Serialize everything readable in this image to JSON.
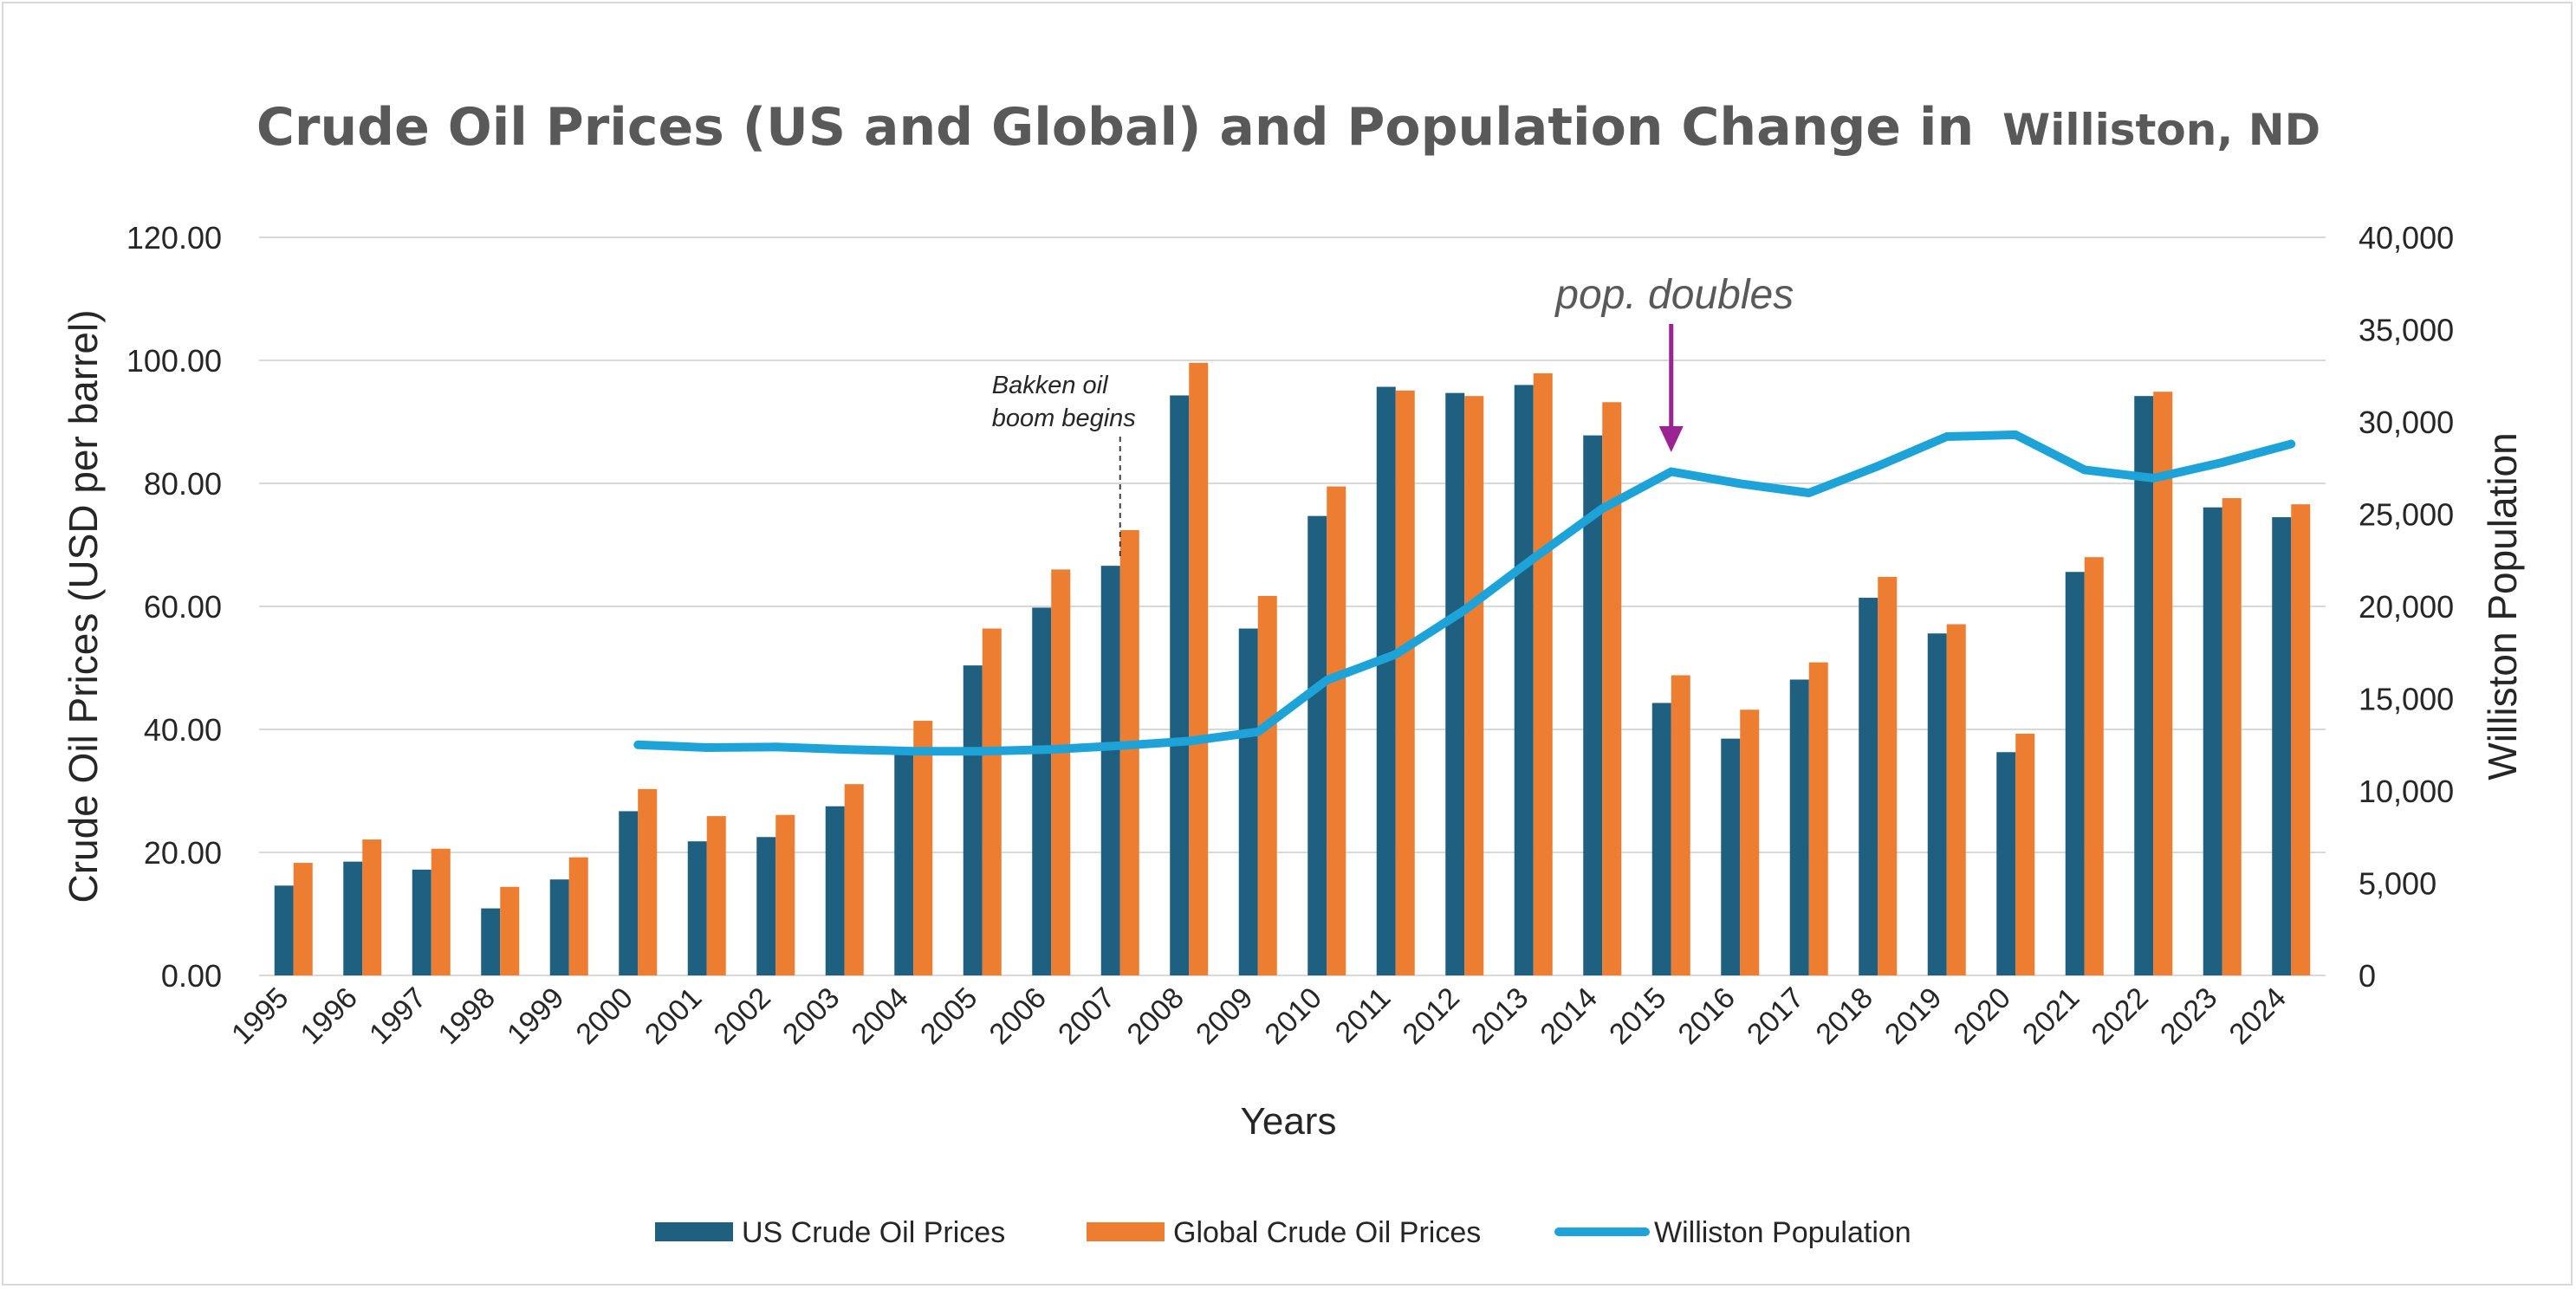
{
  "chart_data": {
    "type": "bar",
    "title_main": "Crude Oil Prices (US and Global) and Population Change in",
    "title_place": "Williston, ND",
    "xlabel": "Years",
    "ylabel": "Crude Oil Prices (USD per barrel)",
    "y2label": "Williston Population",
    "ylim": [
      0,
      120
    ],
    "y2lim": [
      0,
      40000
    ],
    "y_ticks": [
      "0.00",
      "20.00",
      "40.00",
      "60.00",
      "80.00",
      "100.00",
      "120.00"
    ],
    "y2_ticks": [
      "0",
      "5,000",
      "10,000",
      "15,000",
      "20,000",
      "25,000",
      "30,000",
      "35,000",
      "40,000"
    ],
    "grid": true,
    "legend_position": "bottom",
    "categories": [
      "1995",
      "1996",
      "1997",
      "1998",
      "1999",
      "2000",
      "2001",
      "2002",
      "2003",
      "2004",
      "2005",
      "2006",
      "2007",
      "2008",
      "2009",
      "2010",
      "2011",
      "2012",
      "2013",
      "2014",
      "2015",
      "2016",
      "2017",
      "2018",
      "2019",
      "2020",
      "2021",
      "2022",
      "2023",
      "2024"
    ],
    "series": [
      {
        "name": "US Crude Oil Prices",
        "type": "bar",
        "axis": "left",
        "color": "#1f5f80",
        "values": [
          14.6,
          18.5,
          17.2,
          10.9,
          15.6,
          26.7,
          21.8,
          22.5,
          27.5,
          36.9,
          50.4,
          59.8,
          66.6,
          94.3,
          56.4,
          74.7,
          95.7,
          94.7,
          96.0,
          87.8,
          44.3,
          38.5,
          48.1,
          61.4,
          55.6,
          36.3,
          65.6,
          94.2,
          76.1,
          74.5
        ]
      },
      {
        "name": "Global Crude Oil Prices",
        "type": "bar",
        "axis": "left",
        "color": "#ed7d31",
        "values": [
          18.3,
          22.1,
          20.6,
          14.4,
          19.2,
          30.3,
          25.9,
          26.1,
          31.1,
          41.4,
          56.4,
          66.0,
          72.4,
          99.6,
          61.7,
          79.5,
          95.1,
          94.2,
          97.9,
          93.2,
          48.8,
          43.2,
          50.9,
          64.8,
          57.1,
          39.3,
          68.0,
          94.9,
          77.6,
          76.6
        ]
      },
      {
        "name": "Williston Population",
        "type": "line",
        "axis": "right",
        "color": "#1ea3d9",
        "x": [
          "2000",
          "2001",
          "2002",
          "2003",
          "2004",
          "2005",
          "2006",
          "2007",
          "2008",
          "2009",
          "2010",
          "2011",
          "2012",
          "2013",
          "2014",
          "2015",
          "2016",
          "2017",
          "2018",
          "2019",
          "2020",
          "2021",
          "2022",
          "2023",
          "2024"
        ],
        "values": [
          12500,
          12350,
          12380,
          12250,
          12150,
          12150,
          12250,
          12450,
          12700,
          13200,
          16000,
          17400,
          19800,
          22600,
          25300,
          27300,
          26650,
          26150,
          27600,
          29200,
          29300,
          27400,
          26950,
          27800,
          28800
        ]
      }
    ],
    "annotations": [
      {
        "label_lines": [
          "Bakken oil",
          "boom begins"
        ],
        "year": "2007",
        "style": "dashed-leader"
      },
      {
        "label": "pop. doubles",
        "year": "2015",
        "style": "arrow",
        "color": "#9b2493"
      }
    ]
  }
}
